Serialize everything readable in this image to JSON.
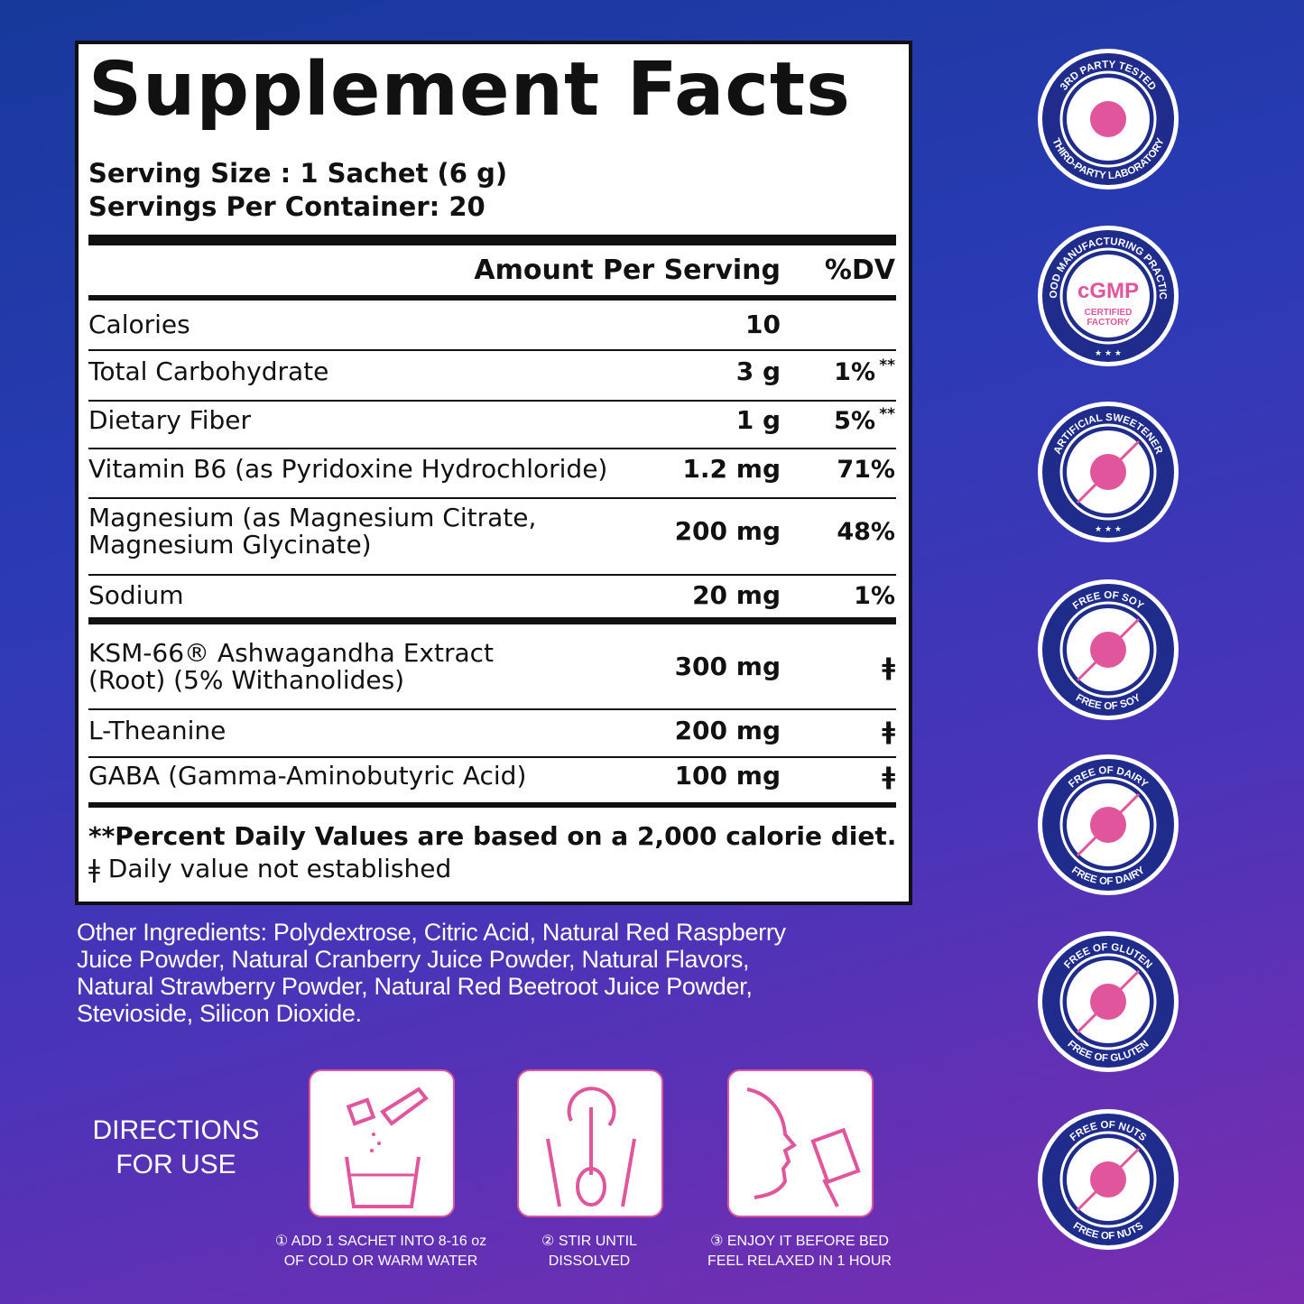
{
  "facts": {
    "title": "Supplement Facts",
    "serving_size": "Serving Size : 1 Sachet (6 g)",
    "servings_per_container": "Servings Per Container: 20",
    "header": {
      "amount": "Amount Per Serving",
      "dv": "%DV"
    },
    "rows": [
      {
        "name": [
          "Calories"
        ],
        "amount": "10"
      },
      {
        "name": [
          "Total Carbohydrate"
        ],
        "amount": "3 g",
        "dv": "1%",
        "dv_mark": "**"
      },
      {
        "name": [
          "Dietary Fiber"
        ],
        "amount": "1 g",
        "dv": "5%",
        "dv_mark": "**"
      },
      {
        "name": [
          "Vitamin B6 (as Pyridoxine Hydrochloride)"
        ],
        "amount": "1.2 mg",
        "dv": "71%"
      },
      {
        "name": [
          "Magnesium (as Magnesium Citrate,",
          "Magnesium Glycinate)"
        ],
        "amount": "200 mg",
        "dv": "48%"
      },
      {
        "name": [
          "Sodium"
        ],
        "amount": "20 mg",
        "dv": "1%"
      },
      {
        "name": [
          "KSM-66® Ashwagandha Extract",
          "(Root) (5% Withanolides)"
        ],
        "amount": "300 mg",
        "dv": "ǂ"
      },
      {
        "name": [
          "L-Theanine"
        ],
        "amount": "200 mg",
        "dv": "ǂ"
      },
      {
        "name": [
          "GABA (Gamma-Aminobutyric Acid)"
        ],
        "amount": "100 mg",
        "dv": "ǂ"
      }
    ],
    "footnotes": [
      "**Percent Daily Values are based on a 2,000 calorie diet.",
      "ǂ Daily value not established"
    ]
  },
  "other_ingredients": [
    "Other Ingredients: Polydextrose, Citric Acid, Natural Red Raspberry",
    "Juice Powder, Natural Cranberry Juice Powder, Natural Flavors,",
    "Natural Strawberry Powder, Natural Red Beetroot Juice Powder,",
    "Stevioside, Silicon Dioxide."
  ],
  "directions": {
    "title": [
      "DIRECTIONS",
      "FOR USE"
    ],
    "steps": [
      [
        "① ADD 1 SACHET INTO 8-16 oz",
        "OF COLD OR WARM WATER"
      ],
      [
        "② STIR UNTIL",
        "DISSOLVED"
      ],
      [
        "③ ENJOY IT BEFORE BED",
        "FEEL RELAXED IN 1 HOUR"
      ]
    ]
  },
  "badges": [
    {
      "top": "3RD PARTY TESTED",
      "bottom": "THIRD-PARTY LABORATORY"
    },
    {
      "top": "GOOD MANUFACTURING PRACTICE",
      "center": [
        "cGMP",
        "CERTIFIED",
        "FACTORY"
      ]
    },
    {
      "top": "ARTIFICIAL SWEETENER"
    },
    {
      "top": "FREE OF SOY",
      "bottom": "FREE OF SOY"
    },
    {
      "top": "FREE OF DAIRY",
      "bottom": "FREE OF DAIRY"
    },
    {
      "top": "FREE OF GLUTEN",
      "bottom": "FREE OF GLUTEN"
    },
    {
      "top": "FREE OF NUTS",
      "bottom": "FREE OF NUTS"
    }
  ]
}
